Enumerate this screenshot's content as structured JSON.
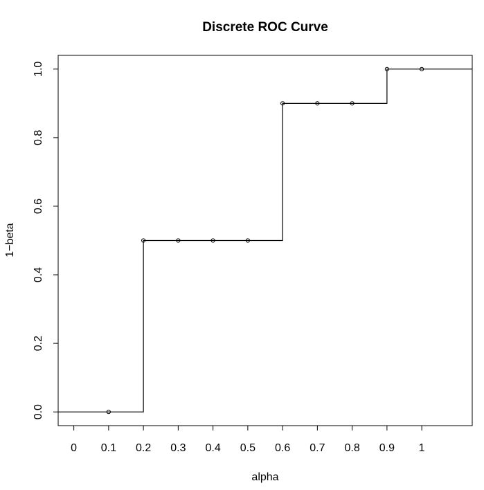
{
  "chart_data": {
    "type": "line",
    "title": "Discrete ROC Curve",
    "xlabel": "alpha",
    "ylabel": "1−beta",
    "xlim": [
      -0.045,
      1.145
    ],
    "ylim": [
      -0.04,
      1.04
    ],
    "x_ticks": [
      {
        "value": 0,
        "label": "0"
      },
      {
        "value": 0.1,
        "label": "0.1"
      },
      {
        "value": 0.2,
        "label": "0.2"
      },
      {
        "value": 0.3,
        "label": "0.3"
      },
      {
        "value": 0.4,
        "label": "0.4"
      },
      {
        "value": 0.5,
        "label": "0.5"
      },
      {
        "value": 0.6,
        "label": "0.6"
      },
      {
        "value": 0.7,
        "label": "0.7"
      },
      {
        "value": 0.8,
        "label": "0.8"
      },
      {
        "value": 0.9,
        "label": "0.9"
      },
      {
        "value": 1,
        "label": "1"
      }
    ],
    "y_ticks": [
      {
        "value": 0.0,
        "label": "0.0"
      },
      {
        "value": 0.2,
        "label": "0.2"
      },
      {
        "value": 0.4,
        "label": "0.4"
      },
      {
        "value": 0.6,
        "label": "0.6"
      },
      {
        "value": 0.8,
        "label": "0.8"
      },
      {
        "value": 1.0,
        "label": "1.0"
      }
    ],
    "step_line": {
      "x": [
        -0.045,
        0.2,
        0.2,
        0.6,
        0.6,
        0.9,
        0.9,
        1.145
      ],
      "y": [
        0,
        0,
        0.5,
        0.5,
        0.9,
        0.9,
        1.0,
        1.0
      ]
    },
    "points": {
      "x": [
        0.1,
        0.2,
        0.3,
        0.4,
        0.5,
        0.6,
        0.7,
        0.8,
        0.9,
        1.0
      ],
      "y": [
        0,
        0.5,
        0.5,
        0.5,
        0.5,
        0.9,
        0.9,
        0.9,
        1.0,
        1.0
      ]
    },
    "grid": false,
    "legend": "none",
    "colors": {
      "line": "#000000",
      "points": "#000000",
      "background": "#ffffff"
    }
  }
}
